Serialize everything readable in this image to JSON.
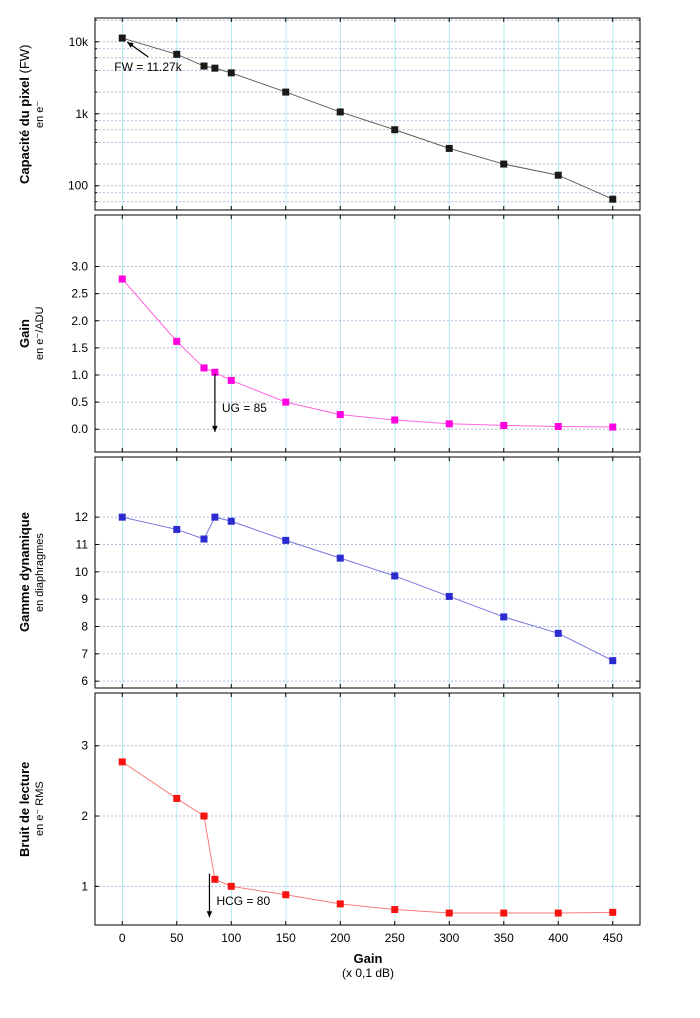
{
  "figure": {
    "background": "#ffffff",
    "x_axis": {
      "label": "Gain",
      "sub": "(x 0,1 dB)",
      "xlim": [
        -25,
        475
      ],
      "tick_values": [
        0,
        50,
        100,
        150,
        200,
        250,
        300,
        350,
        400,
        450
      ],
      "tick_labels": [
        "0",
        "50",
        "100",
        "150",
        "200",
        "250",
        "300",
        "350",
        "400",
        "450"
      ]
    }
  },
  "colors": {
    "grid_vertical": "#b5ecf0",
    "grid_horizontal": "#6670b8",
    "panel_border": "#000000",
    "tick": "#000000",
    "text": "#000000",
    "annotation_arrow": "#000000"
  },
  "chart_data": [
    {
      "type": "line",
      "name": "capacite-du-pixel",
      "ylabel_main": "Capacité du pixel",
      "ylabel_extra": " (FW)",
      "ylabel_sub": "en e⁻",
      "yscale": "log",
      "ylim": [
        46,
        21400
      ],
      "yticks": [
        {
          "v": 100,
          "label": "100"
        },
        {
          "v": 1000,
          "label": "1k"
        },
        {
          "v": 10000,
          "label": "10k"
        }
      ],
      "minor_gridlines": [
        60,
        80,
        200,
        400,
        600,
        800,
        2000,
        4000,
        6000,
        8000,
        20000
      ],
      "x": [
        0,
        50,
        75,
        85,
        100,
        150,
        200,
        250,
        300,
        350,
        400,
        450
      ],
      "values": [
        11270,
        6700,
        4600,
        4300,
        3700,
        2000,
        1060,
        600,
        330,
        200,
        140,
        65
      ],
      "marker_color": "#1a1a1a",
      "line_color": "#606060",
      "annotation": {
        "type": "point-arrow",
        "text": "FW = 11.27k",
        "x": 0,
        "y": 11270
      }
    },
    {
      "type": "line",
      "name": "gain",
      "ylabel_main": "Gain",
      "ylabel_extra": "",
      "ylabel_sub": "en e⁻/ADU",
      "yscale": "linear",
      "ylim": [
        -0.42,
        3.95
      ],
      "yticks": [
        {
          "v": 0.0,
          "label": "0.0"
        },
        {
          "v": 0.5,
          "label": "0.5"
        },
        {
          "v": 1.0,
          "label": "1.0"
        },
        {
          "v": 1.5,
          "label": "1.5"
        },
        {
          "v": 2.0,
          "label": "2.0"
        },
        {
          "v": 2.5,
          "label": "2.5"
        },
        {
          "v": 3.0,
          "label": "3.0"
        }
      ],
      "minor_gridlines": [],
      "x": [
        0,
        50,
        75,
        85,
        100,
        150,
        200,
        250,
        300,
        350,
        400,
        450
      ],
      "values": [
        2.77,
        1.62,
        1.13,
        1.05,
        0.9,
        0.5,
        0.27,
        0.17,
        0.1,
        0.07,
        0.05,
        0.04
      ],
      "marker_color": "#ff00e1",
      "line_color": "#ff66dd",
      "annotation": {
        "type": "down-arrow",
        "text": "UG = 85",
        "x": 85,
        "y_from": 1.02,
        "y_to": -0.05,
        "text_y": 0.39
      }
    },
    {
      "type": "line",
      "name": "gamme-dynamique",
      "ylabel_main": "Gamme dynamique",
      "ylabel_extra": "",
      "ylabel_sub": "en diaphragmes",
      "yscale": "linear",
      "ylim": [
        5.75,
        14.2
      ],
      "yticks": [
        {
          "v": 6,
          "label": "6"
        },
        {
          "v": 7,
          "label": "7"
        },
        {
          "v": 8,
          "label": "8"
        },
        {
          "v": 9,
          "label": "9"
        },
        {
          "v": 10,
          "label": "10"
        },
        {
          "v": 11,
          "label": "11"
        },
        {
          "v": 12,
          "label": "12"
        }
      ],
      "minor_gridlines": [],
      "x": [
        0,
        50,
        75,
        85,
        100,
        150,
        200,
        250,
        300,
        350,
        400,
        450
      ],
      "values": [
        12.0,
        11.55,
        11.2,
        12.0,
        11.85,
        11.15,
        10.5,
        9.85,
        9.1,
        8.35,
        7.75,
        6.75
      ],
      "marker_color": "#2b2bd0",
      "line_color": "#7777dd",
      "annotation": null
    },
    {
      "type": "line",
      "name": "bruit-de-lecture",
      "ylabel_main": "Bruit de lecture",
      "ylabel_extra": "",
      "ylabel_sub": "en e⁻ RMS",
      "yscale": "linear",
      "ylim": [
        0.45,
        3.75
      ],
      "yticks": [
        {
          "v": 1,
          "label": "1"
        },
        {
          "v": 2,
          "label": "2"
        },
        {
          "v": 3,
          "label": "3"
        }
      ],
      "minor_gridlines": [],
      "x": [
        0,
        50,
        75,
        85,
        100,
        150,
        200,
        250,
        300,
        350,
        400,
        450
      ],
      "values": [
        2.77,
        2.25,
        2.0,
        1.1,
        1.0,
        0.88,
        0.75,
        0.67,
        0.62,
        0.62,
        0.62,
        0.63
      ],
      "marker_color": "#f81313",
      "line_color": "#fa7a7a",
      "annotation": {
        "type": "down-arrow",
        "text": "HCG = 80",
        "x": 80,
        "y_from": 1.18,
        "y_to": 0.56,
        "text_y": 0.79
      }
    }
  ]
}
